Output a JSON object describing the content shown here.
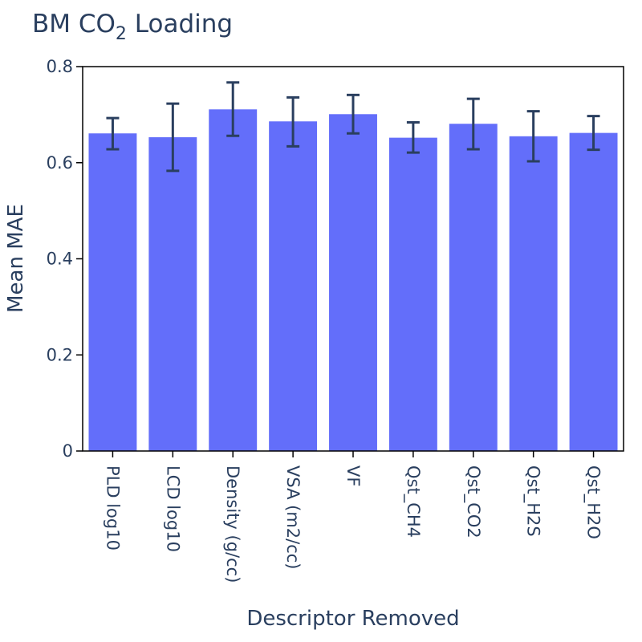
{
  "chart_data": {
    "type": "bar",
    "title": "BM CO",
    "title_subscript": "2",
    "title_suffix": " Loading",
    "xlabel": "Descriptor Removed",
    "ylabel": "Mean MAE",
    "ylim": [
      0,
      0.8
    ],
    "yticks": [
      0,
      0.2,
      0.4,
      0.6,
      0.8
    ],
    "ytick_labels": [
      "0",
      "0.2",
      "0.4",
      "0.6",
      "0.8"
    ],
    "categories": [
      "PLD log10",
      "LCD log10",
      "Density (g/cc)",
      "VSA (m2/cc)",
      "VF",
      "Qst_CH4",
      "Qst_CO2",
      "Qst_H2S",
      "Qst_H2O"
    ],
    "values": [
      0.661,
      0.653,
      0.711,
      0.686,
      0.701,
      0.652,
      0.681,
      0.655,
      0.662
    ],
    "error_low": [
      0.628,
      0.583,
      0.656,
      0.634,
      0.661,
      0.621,
      0.628,
      0.603,
      0.627
    ],
    "error_high": [
      0.693,
      0.723,
      0.767,
      0.736,
      0.741,
      0.684,
      0.733,
      0.707,
      0.697
    ],
    "grid": false,
    "bar_color": "#636efa",
    "error_bar_color": "#2a3f5f",
    "axis_color": "#000000"
  }
}
